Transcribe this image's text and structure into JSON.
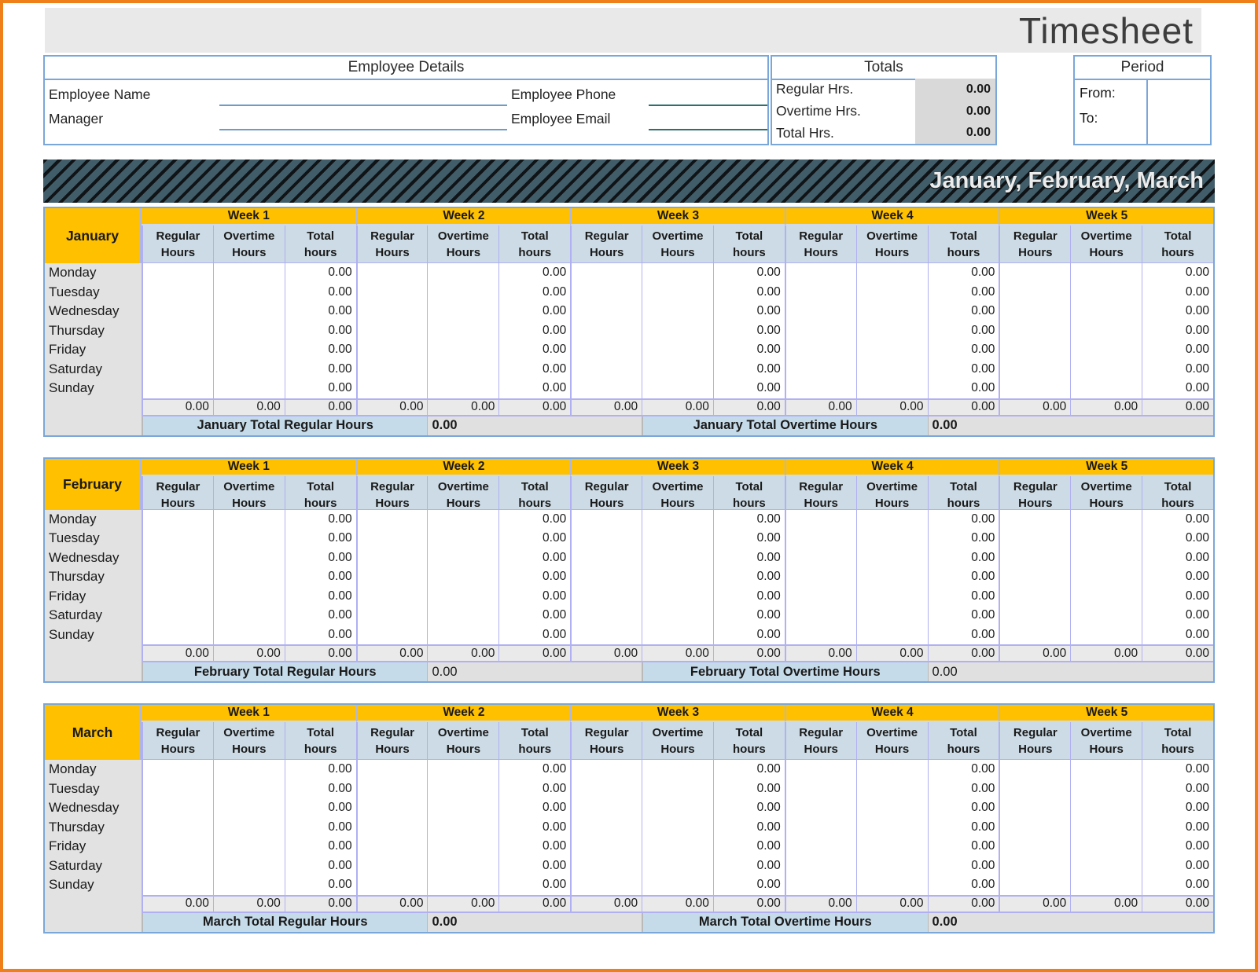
{
  "page_title": "Timesheet",
  "colors": {
    "border_orange": "#ef8019",
    "accent_yellow": "#ffc000",
    "box_border_blue": "#7aa7d9",
    "grid_lavender": "#b0b0f2",
    "banner_slate": "#415d69",
    "subheader_blue": "#ccdbe5"
  },
  "employee_details": {
    "title": "Employee Details",
    "name_label": "Employee Name",
    "manager_label": "Manager",
    "phone_label": "Employee Phone",
    "email_label": "Employee Email",
    "name_value": "",
    "manager_value": "",
    "phone_value": "",
    "email_value": ""
  },
  "totals": {
    "title": "Totals",
    "rows": [
      {
        "label": "Regular Hrs.",
        "value": "0.00"
      },
      {
        "label": "Overtime Hrs.",
        "value": "0.00"
      },
      {
        "label": "Total Hrs.",
        "value": "0.00"
      }
    ]
  },
  "period": {
    "title": "Period",
    "from_label": "From:",
    "to_label": "To:",
    "from_value": "",
    "to_value": ""
  },
  "quarter_banner": "January, February, March",
  "table": {
    "weeks": [
      "Week 1",
      "Week 2",
      "Week 3",
      "Week 4",
      "Week 5"
    ],
    "col_headers": [
      {
        "line1": "Regular",
        "line2": "Hours"
      },
      {
        "line1": "Overtime",
        "line2": "Hours"
      },
      {
        "line1": "Total",
        "line2": "hours"
      }
    ],
    "days": [
      "Monday",
      "Tuesday",
      "Wednesday",
      "Thursday",
      "Friday",
      "Saturday",
      "Sunday"
    ],
    "zero": "0.00"
  },
  "months": [
    {
      "name": "January",
      "total_regular_label": "January Total Regular Hours",
      "total_regular_value": "0.00",
      "total_overtime_label": "January Total Overtime Hours",
      "total_overtime_value": "0.00",
      "footer_values_bold": true,
      "subheader_clipped": false
    },
    {
      "name": "February",
      "total_regular_label": "February Total Regular Hours",
      "total_regular_value": "0.00",
      "total_overtime_label": "February Total Overtime Hours",
      "total_overtime_value": "0.00",
      "footer_values_bold": false,
      "subheader_clipped": true
    },
    {
      "name": "March",
      "total_regular_label": "March Total Regular Hours",
      "total_regular_value": "0.00",
      "total_overtime_label": "March Total Overtime Hours",
      "total_overtime_value": "0.00",
      "footer_values_bold": true,
      "subheader_clipped": false
    }
  ]
}
